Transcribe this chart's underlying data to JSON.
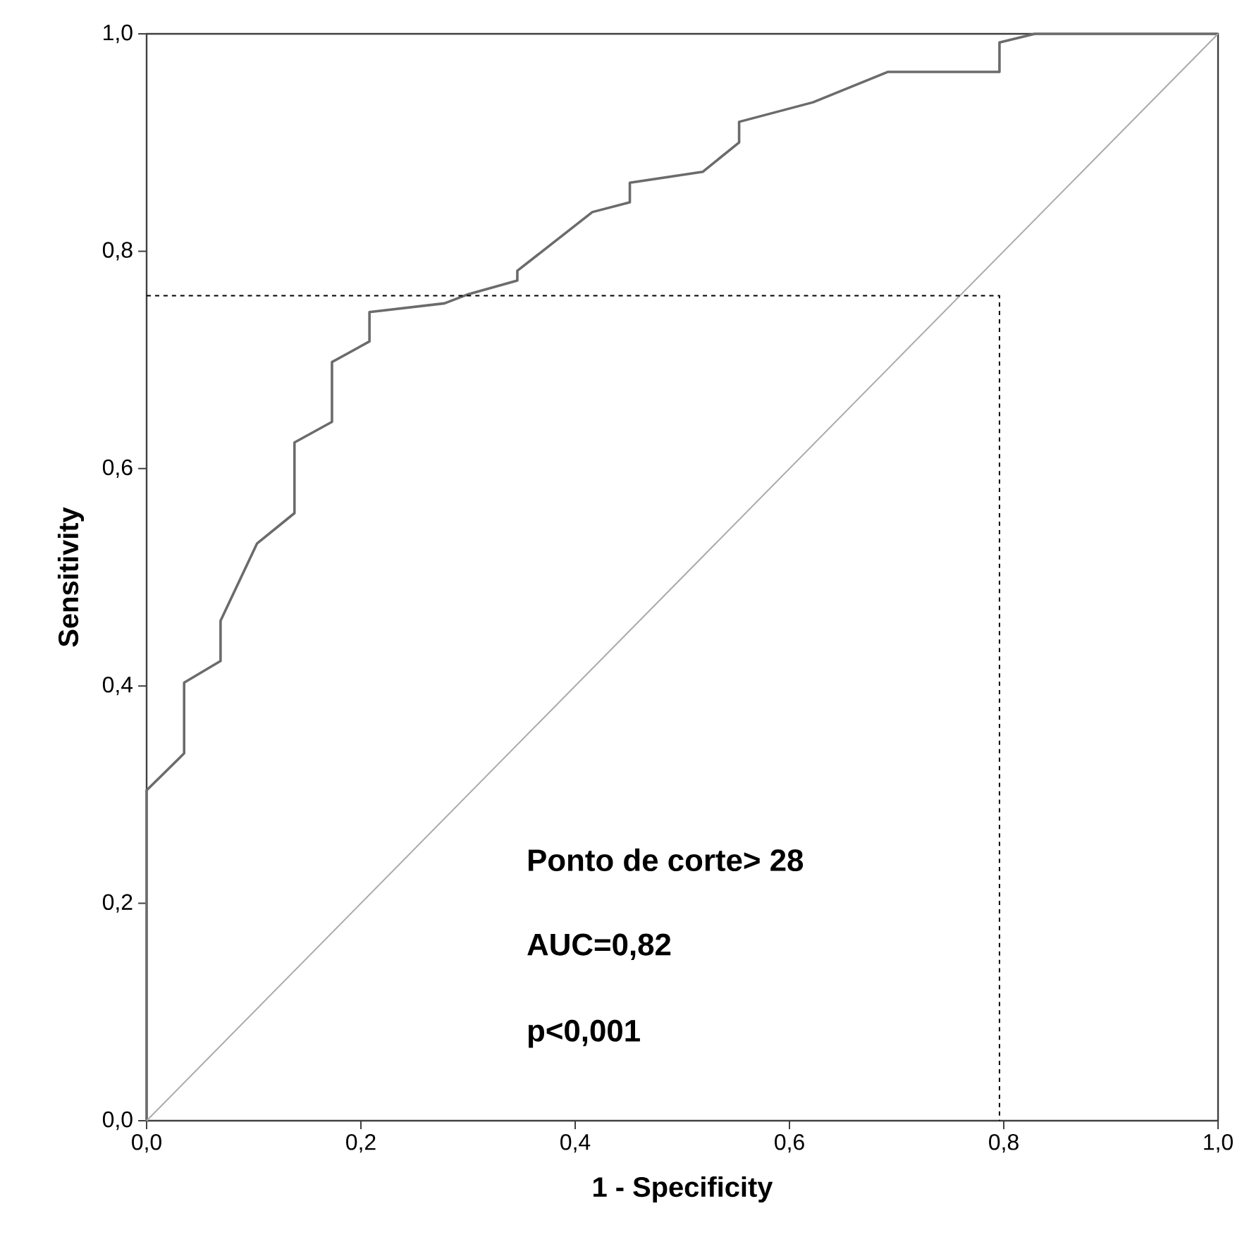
{
  "chart_data": {
    "type": "line",
    "xlabel": "1 - Specificity",
    "ylabel": "Sensitivity",
    "xlim": [
      0,
      1
    ],
    "ylim": [
      0,
      1
    ],
    "xticks": [
      {
        "value": 0,
        "label": "0,0"
      },
      {
        "value": 0.2,
        "label": "0,2"
      },
      {
        "value": 0.4,
        "label": "0,4"
      },
      {
        "value": 0.6,
        "label": "0,6"
      },
      {
        "value": 0.8,
        "label": "0,8"
      },
      {
        "value": 1,
        "label": "1,0"
      }
    ],
    "yticks": [
      {
        "value": 0,
        "label": "0,0"
      },
      {
        "value": 0.2,
        "label": "0,2"
      },
      {
        "value": 0.4,
        "label": "0,4"
      },
      {
        "value": 0.6,
        "label": "0,6"
      },
      {
        "value": 0.8,
        "label": "0,8"
      },
      {
        "value": 1,
        "label": "1,0"
      }
    ],
    "grid": false,
    "marker": "none",
    "series": [
      {
        "color": "#6b6b6b",
        "line_style": "solid",
        "x": [
          0,
          0,
          0.035,
          0.035,
          0.069,
          0.069,
          0.103,
          0.138,
          0.138,
          0.173,
          0.173,
          0.208,
          0.208,
          0.278,
          0.299,
          0.346,
          0.346,
          0.416,
          0.451,
          0.451,
          0.519,
          0.553,
          0.553,
          0.622,
          0.692,
          0.796,
          0.796,
          0.829,
          1
        ],
        "values": [
          0,
          0.304,
          0.338,
          0.403,
          0.423,
          0.46,
          0.531,
          0.559,
          0.624,
          0.643,
          0.698,
          0.717,
          0.744,
          0.752,
          0.76,
          0.773,
          0.782,
          0.836,
          0.845,
          0.863,
          0.873,
          0.9,
          0.919,
          0.937,
          0.965,
          0.965,
          0.992,
          1,
          1
        ]
      },
      {
        "color": "#aaaaaa",
        "line_style": "solid",
        "x": [
          0,
          1
        ],
        "values": [
          0,
          1
        ]
      },
      {
        "color": "#000000",
        "line_style": "dashed",
        "x": [
          0,
          0.796,
          0.796
        ],
        "values": [
          0.759,
          0.759,
          0
        ]
      }
    ],
    "annotations": [
      "Ponto de corte> 28",
      "AUC=0,82",
      "p<0,001"
    ]
  }
}
